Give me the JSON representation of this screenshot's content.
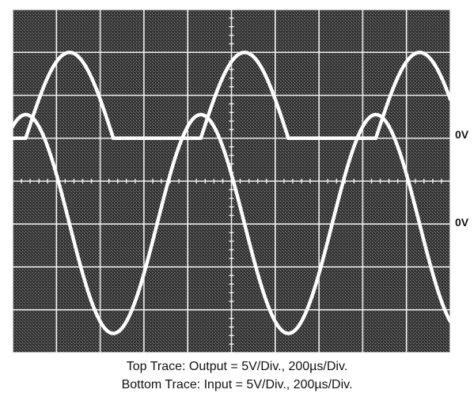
{
  "chart_data": {
    "type": "line",
    "display": "oscilloscope",
    "grid": true,
    "divisions": {
      "x": 10,
      "y": 8
    },
    "x_unit": "div",
    "y_unit": "div",
    "xlim": [
      0,
      10
    ],
    "ylim": [
      -4,
      4
    ],
    "series": [
      {
        "id": "output",
        "ground": 1.0,
        "amplitude": 2.0,
        "period": 4.0,
        "peak_at": 1.3,
        "clip_below_ground": true
      },
      {
        "id": "input",
        "ground": -1.0,
        "amplitude": 2.55,
        "period": 4.0,
        "peak_at": 0.3,
        "clip_below_ground": false
      }
    ],
    "zero_markers": [
      {
        "series": "output",
        "label": "0V"
      },
      {
        "series": "input",
        "label": "0V"
      }
    ],
    "caption": [
      "Top Trace:  Output = 5V/Div., 200µs/Div.",
      "Bottom Trace:  Input = 5V/Div., 200µs/Div."
    ]
  },
  "colors": {
    "screen": "#2b2b2b",
    "grid": "#f2f2f2",
    "trace": "#ffffff",
    "text": "#111111"
  }
}
